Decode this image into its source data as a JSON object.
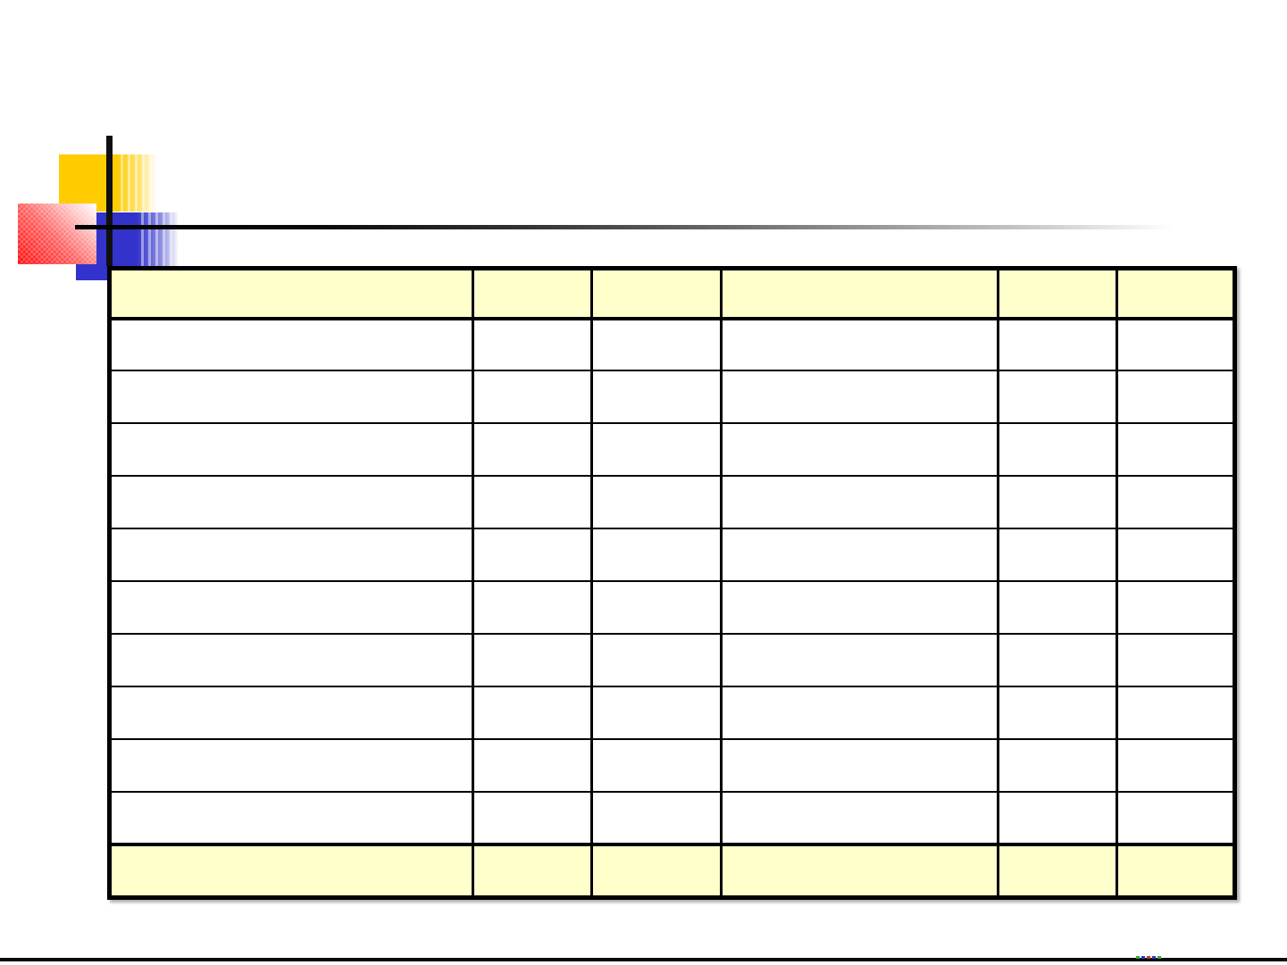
{
  "slide": {
    "background": "#FFFFFF",
    "title_text": ""
  },
  "colors": {
    "accent_gold": "#FFCC00",
    "accent_blue": "#3333CC",
    "accent_red": "#FF0000",
    "table_band_fill": "#FFFFCC",
    "border": "#000000",
    "rule": "#000000"
  },
  "decorations": {
    "gold_square": "gold-gradient-square",
    "red_square": "red-gradient-square",
    "blue_square": "blue-gradient-square",
    "vertical_rule": "black-vertical-rule",
    "horizontal_rule": "fading-horizontal-rule",
    "bottom_rule": "bottom-edge-rule",
    "bottom_mini_motif_colors": [
      "#33AA33",
      "#3333CC",
      "#CC3333",
      "#3333CC",
      "#33AA33"
    ]
  },
  "table": {
    "column_count": 6,
    "header_cells": [
      "",
      "",
      "",
      "",
      "",
      ""
    ],
    "body_rows": [
      [
        "",
        "",
        "",
        "",
        "",
        ""
      ],
      [
        "",
        "",
        "",
        "",
        "",
        ""
      ],
      [
        "",
        "",
        "",
        "",
        "",
        ""
      ],
      [
        "",
        "",
        "",
        "",
        "",
        ""
      ],
      [
        "",
        "",
        "",
        "",
        "",
        ""
      ],
      [
        "",
        "",
        "",
        "",
        "",
        ""
      ],
      [
        "",
        "",
        "",
        "",
        "",
        ""
      ],
      [
        "",
        "",
        "",
        "",
        "",
        ""
      ],
      [
        "",
        "",
        "",
        "",
        "",
        ""
      ],
      [
        "",
        "",
        "",
        "",
        "",
        ""
      ]
    ],
    "footer_cells": [
      "",
      "",
      "",
      "",
      "",
      ""
    ]
  }
}
